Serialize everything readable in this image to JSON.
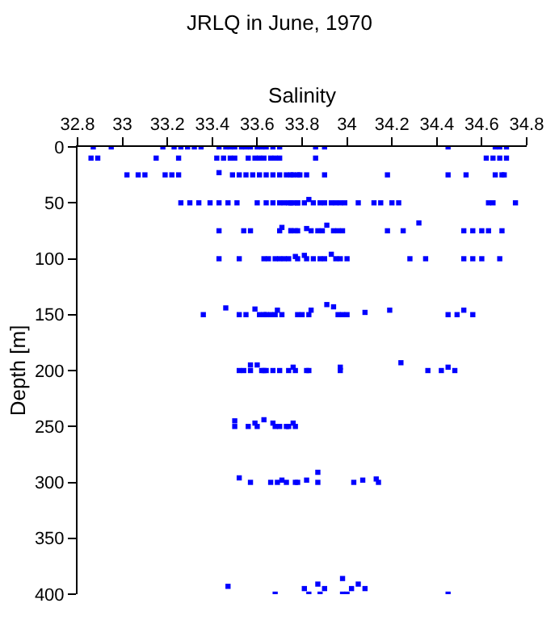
{
  "chart_data": {
    "type": "scatter",
    "title": "JRLQ in June, 1970",
    "xlabel": "Salinity",
    "ylabel": "Depth [m]",
    "xlim": [
      32.8,
      34.8
    ],
    "xticks": [
      32.8,
      33,
      33.2,
      33.4,
      33.6,
      33.8,
      34,
      34.2,
      34.4,
      34.6,
      34.8
    ],
    "ylim": [
      400,
      0
    ],
    "yticks": [
      0,
      50,
      100,
      150,
      200,
      250,
      300,
      350,
      400
    ],
    "marker": "square",
    "series": [
      {
        "color": "#0000ff",
        "x": [
          32.87,
          32.95,
          33.18,
          33.23,
          33.26,
          33.29,
          33.32,
          33.35,
          33.43,
          33.46,
          33.48,
          33.5,
          33.53,
          33.55,
          33.57,
          33.6,
          33.62,
          33.64,
          33.67,
          33.7,
          33.86,
          33.9,
          34.45,
          34.66,
          34.68,
          34.71,
          32.86,
          32.89,
          33.15,
          33.25,
          33.42,
          33.45,
          33.48,
          33.5,
          33.56,
          33.59,
          33.61,
          33.63,
          33.66,
          33.68,
          33.7,
          33.86,
          34.62,
          34.65,
          34.68,
          34.71,
          33.02,
          33.07,
          33.1,
          33.19,
          33.22,
          33.25,
          33.43,
          33.49,
          33.52,
          33.55,
          33.58,
          33.61,
          33.64,
          33.67,
          33.7,
          33.73,
          33.75,
          33.78,
          33.76,
          33.79,
          33.82,
          33.9,
          34.18,
          34.45,
          34.53,
          34.66,
          34.69,
          34.7,
          33.26,
          33.3,
          33.34,
          33.39,
          33.43,
          33.47,
          33.51,
          33.6,
          33.64,
          33.67,
          33.7,
          33.72,
          33.75,
          33.78,
          33.74,
          33.76,
          33.78,
          33.81,
          33.83,
          33.85,
          33.88,
          33.9,
          33.93,
          33.95,
          33.97,
          33.99,
          34.05,
          34.12,
          34.15,
          34.2,
          34.23,
          34.63,
          34.65,
          34.75,
          33.43,
          33.54,
          33.57,
          33.7,
          33.71,
          33.75,
          33.78,
          33.75,
          33.77,
          33.82,
          33.84,
          33.87,
          33.89,
          33.91,
          33.94,
          33.96,
          33.98,
          34.18,
          34.25,
          34.32,
          34.52,
          34.56,
          34.6,
          34.63,
          34.69,
          33.43,
          33.52,
          33.63,
          33.65,
          33.68,
          33.7,
          33.72,
          33.74,
          33.77,
          33.78,
          33.81,
          33.82,
          33.85,
          33.88,
          33.9,
          33.93,
          33.95,
          33.97,
          34.0,
          34.28,
          34.35,
          34.52,
          34.56,
          34.6,
          34.68,
          33.36,
          33.46,
          33.52,
          33.55,
          33.59,
          33.61,
          33.63,
          33.64,
          33.66,
          33.68,
          33.69,
          33.71,
          33.78,
          33.8,
          33.83,
          33.84,
          33.91,
          33.94,
          33.96,
          33.98,
          34.0,
          34.08,
          34.19,
          34.45,
          34.49,
          34.52,
          34.56,
          33.52,
          33.54,
          33.57,
          33.57,
          33.6,
          33.62,
          33.63,
          33.64,
          33.67,
          33.7,
          33.74,
          33.76,
          33.77,
          33.82,
          33.83,
          33.97,
          33.97,
          34.24,
          34.36,
          34.42,
          34.45,
          34.48,
          33.5,
          33.5,
          33.56,
          33.59,
          33.6,
          33.63,
          33.67,
          33.68,
          33.7,
          33.73,
          33.74,
          33.76,
          33.77,
          33.52,
          33.57,
          33.66,
          33.69,
          33.71,
          33.78,
          33.73,
          33.77,
          33.82,
          33.87,
          33.87,
          34.03,
          34.07,
          34.13,
          34.14,
          33.47,
          33.68,
          33.81,
          33.83,
          33.88,
          33.87,
          33.9,
          33.98,
          33.98,
          34.0,
          34.02,
          34.05,
          34.08,
          34.45
        ],
        "values": [
          0,
          0,
          0,
          0,
          0,
          0,
          0,
          0,
          0,
          0,
          0,
          0,
          0,
          0,
          0,
          0,
          0,
          0,
          0,
          0,
          0,
          0,
          0,
          0,
          0,
          0,
          10,
          10,
          10,
          10,
          10,
          10,
          10,
          10,
          10,
          10,
          10,
          10,
          10,
          10,
          10,
          10,
          10,
          10,
          10,
          10,
          25,
          25,
          25,
          25,
          25,
          25,
          23,
          25,
          25,
          25,
          25,
          25,
          25,
          25,
          25,
          25,
          25,
          25,
          25,
          25,
          25,
          25,
          25,
          25,
          25,
          25,
          25,
          25,
          50,
          50,
          50,
          50,
          50,
          50,
          50,
          50,
          50,
          50,
          50,
          50,
          50,
          50,
          50,
          50,
          50,
          50,
          47,
          50,
          50,
          50,
          50,
          50,
          50,
          50,
          50,
          50,
          50,
          50,
          50,
          50,
          50,
          50,
          75,
          75,
          75,
          75,
          72,
          75,
          75,
          75,
          75,
          73,
          75,
          75,
          75,
          70,
          75,
          75,
          75,
          75,
          75,
          68,
          75,
          75,
          75,
          75,
          75,
          100,
          100,
          100,
          100,
          100,
          100,
          100,
          100,
          98,
          100,
          97,
          100,
          100,
          100,
          100,
          96,
          100,
          100,
          100,
          100,
          100,
          100,
          100,
          100,
          100,
          150,
          144,
          150,
          150,
          145,
          150,
          150,
          150,
          150,
          150,
          146,
          150,
          150,
          150,
          150,
          146,
          141,
          143,
          150,
          150,
          150,
          148,
          146,
          150,
          150,
          146,
          150,
          200,
          200,
          200,
          195,
          195,
          200,
          200,
          200,
          200,
          200,
          200,
          197,
          200,
          200,
          200,
          200,
          197,
          193,
          200,
          200,
          197,
          200,
          250,
          245,
          250,
          247,
          250,
          244,
          247,
          250,
          250,
          250,
          250,
          247,
          250,
          296,
          300,
          300,
          300,
          298,
          300,
          300,
          300,
          298,
          300,
          291,
          300,
          298,
          297,
          300,
          393,
          400,
          395,
          400,
          400,
          391,
          395,
          386,
          400,
          400,
          395,
          391,
          395,
          400
        ]
      }
    ]
  }
}
